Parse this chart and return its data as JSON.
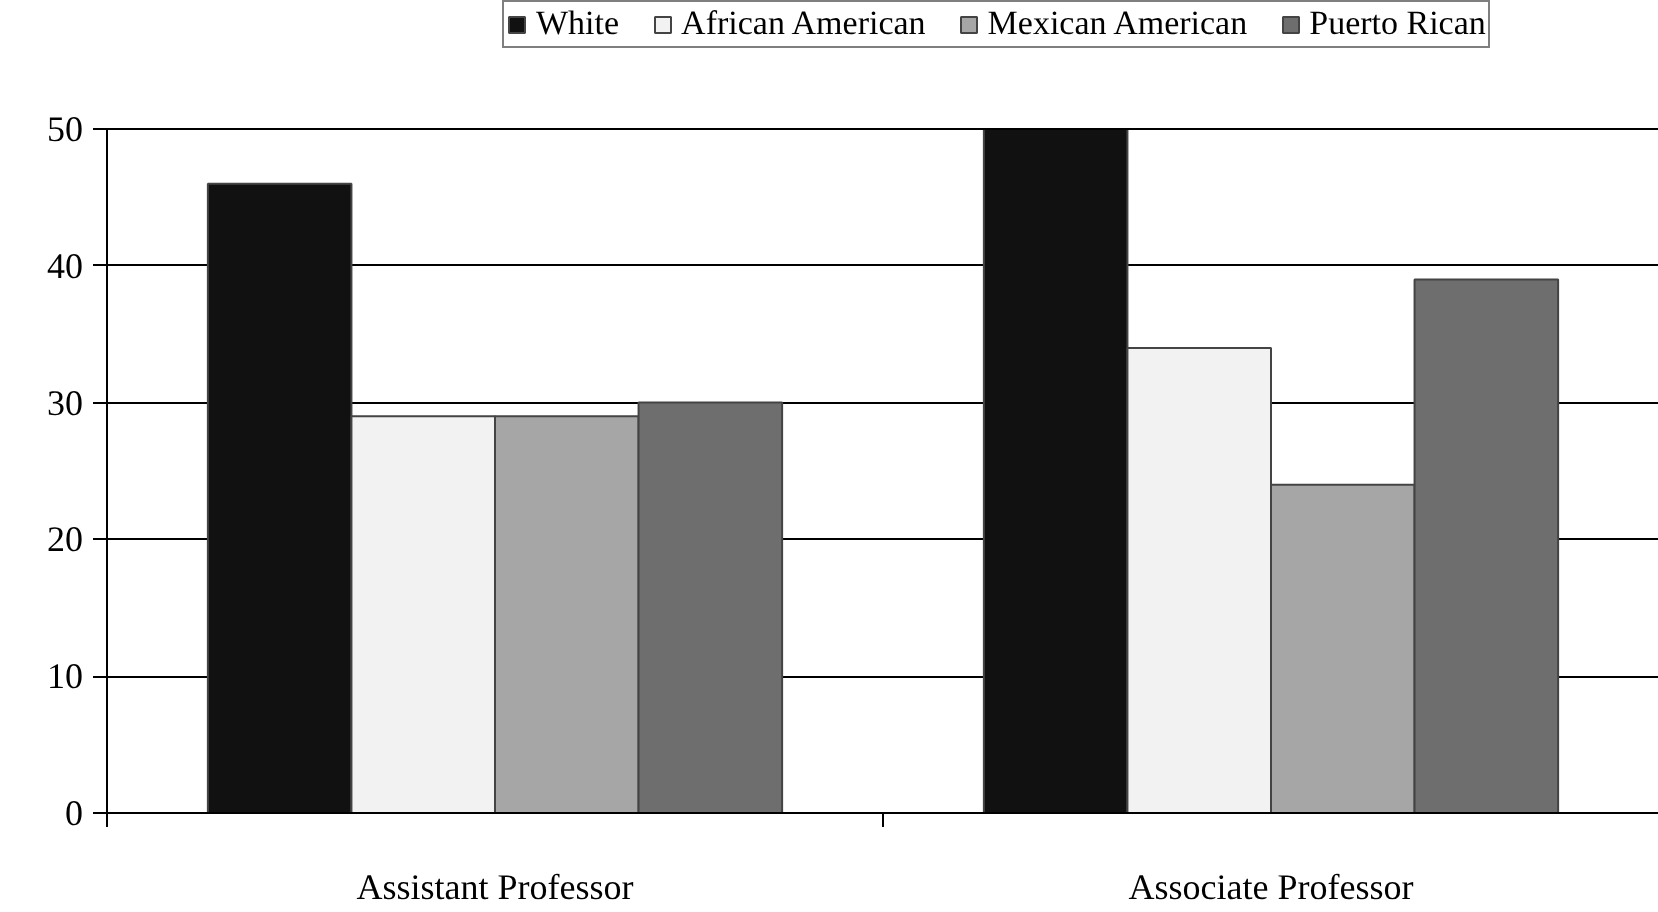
{
  "chart_data": {
    "type": "bar",
    "categories": [
      "Assistant Professor",
      "Associate Professor"
    ],
    "series": [
      {
        "name": "White",
        "color": "#111111",
        "values": [
          46,
          50
        ]
      },
      {
        "name": "African American",
        "color": "#f2f2f2",
        "values": [
          29,
          34
        ]
      },
      {
        "name": "Mexican American",
        "color": "#a6a6a6",
        "values": [
          29,
          24
        ]
      },
      {
        "name": "Puerto Rican",
        "color": "#6e6e6e",
        "values": [
          30,
          39
        ]
      }
    ],
    "ylim": [
      0,
      50
    ],
    "yticks": [
      0,
      10,
      20,
      30,
      40,
      50
    ],
    "grid": "y",
    "legend": "top"
  }
}
